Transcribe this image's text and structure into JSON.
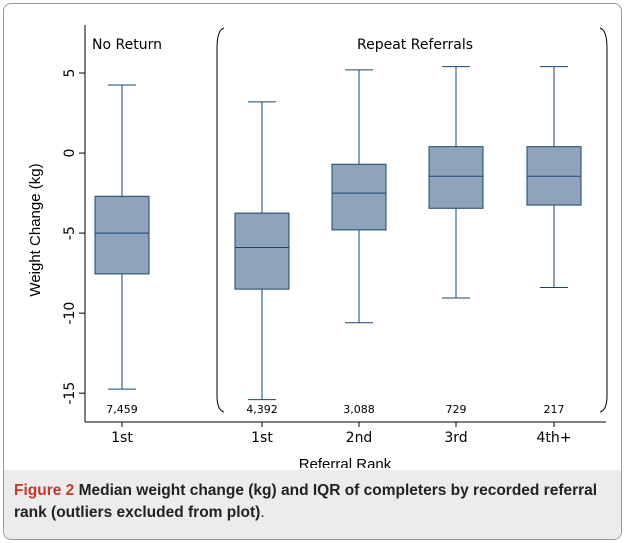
{
  "chart_data": {
    "type": "box",
    "groups": [
      "No Return",
      "Repeat Referrals"
    ],
    "categories": [
      "1st",
      "1st",
      "2nd",
      "3rd",
      "4th+"
    ],
    "min": [
      -14.75,
      -15.4,
      -10.6,
      -9.05,
      -8.4
    ],
    "q1": [
      -7.55,
      -8.5,
      -4.8,
      -3.45,
      -3.25
    ],
    "median": [
      -5.0,
      -5.9,
      -2.5,
      -1.45,
      -1.45
    ],
    "q3": [
      -2.7,
      -3.75,
      -0.7,
      0.4,
      0.4
    ],
    "max": [
      4.25,
      3.2,
      5.2,
      5.4,
      5.4
    ],
    "counts": [
      "7,459",
      "4,392",
      "3,088",
      "729",
      "217"
    ],
    "color": "#8fa3ba",
    "line_color": "#1a476f",
    "ylim": [
      -16.8,
      8
    ],
    "yticks": [
      5,
      0,
      -5,
      -10,
      -15
    ],
    "y_label": "Weight Change (kg)",
    "x_label": "Referral Rank"
  },
  "caption": {
    "label": "Figure 2",
    "text": "Median weight change (kg) and IQR of completers by recorded referral rank (outliers excluded from plot)",
    "end": "."
  }
}
